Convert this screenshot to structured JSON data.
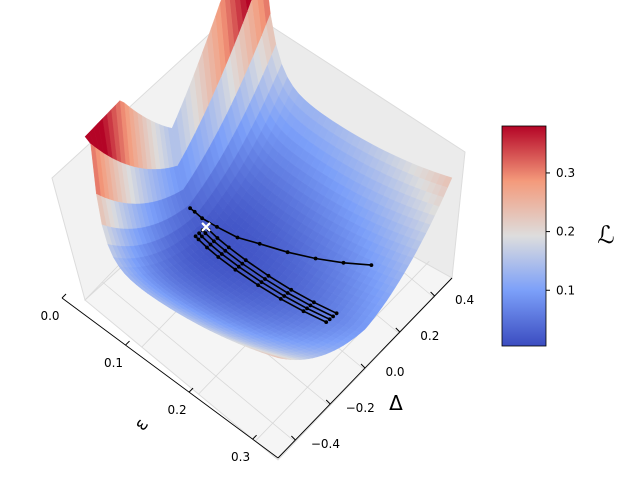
{
  "chart_data": {
    "type": "surface",
    "xlabel": "ε",
    "ylabel": "Δ",
    "zlabel": "ℒ",
    "x_ticks": [
      "0.0",
      "0.1",
      "0.2",
      "0.3"
    ],
    "y_ticks": [
      "−0.4",
      "−0.2",
      "0.0",
      "0.2",
      "0.4"
    ],
    "xlim": [
      0.0,
      0.34
    ],
    "ylim": [
      -0.5,
      0.5
    ],
    "colormap": "coolwarm",
    "colorbar": {
      "label": "ℒ",
      "ticks": [
        "0.1",
        "0.2",
        "0.3"
      ],
      "tick_values": [
        0.1,
        0.2,
        0.3
      ],
      "range": [
        0.005,
        0.38
      ]
    },
    "grid": true,
    "surface_note": "loss landscape over (ε, Δ) with a low valley near ε≈0.05, Δ≈0 and high ridges at ε≈0",
    "trajectories": [
      {
        "epsilon": [
          0.29,
          0.25,
          0.21,
          0.17,
          0.13,
          0.1,
          0.07,
          0.05,
          0.04,
          0.035
        ],
        "delta": [
          0.2,
          0.17,
          0.14,
          0.11,
          0.08,
          0.05,
          0.03,
          0.01,
          0.0,
          -0.01
        ]
      },
      {
        "epsilon": [
          0.29,
          0.25,
          0.21,
          0.17,
          0.13,
          0.1,
          0.08,
          0.065,
          0.06
        ],
        "delta": [
          0.0,
          0.0,
          0.0,
          0.0,
          0.0,
          0.0,
          0.0,
          0.0,
          0.0
        ]
      },
      {
        "epsilon": [
          0.29,
          0.25,
          0.21,
          0.17,
          0.13,
          0.1,
          0.08,
          0.065,
          0.06
        ],
        "delta": [
          -0.02,
          -0.02,
          -0.02,
          -0.02,
          -0.02,
          -0.02,
          -0.02,
          -0.02,
          -0.02
        ]
      },
      {
        "epsilon": [
          0.29,
          0.25,
          0.21,
          0.17,
          0.13,
          0.1,
          0.08,
          0.065,
          0.06
        ],
        "delta": [
          -0.04,
          -0.04,
          -0.04,
          -0.04,
          -0.04,
          -0.04,
          -0.04,
          -0.04,
          -0.04
        ]
      },
      {
        "epsilon": [
          0.29,
          0.25,
          0.21,
          0.17,
          0.13,
          0.1,
          0.08,
          0.065,
          0.06
        ],
        "delta": [
          -0.06,
          -0.06,
          -0.06,
          -0.06,
          -0.06,
          -0.06,
          -0.06,
          -0.06,
          -0.06
        ]
      }
    ],
    "minimum_marker": {
      "epsilon": 0.06,
      "delta": 0.0
    }
  }
}
